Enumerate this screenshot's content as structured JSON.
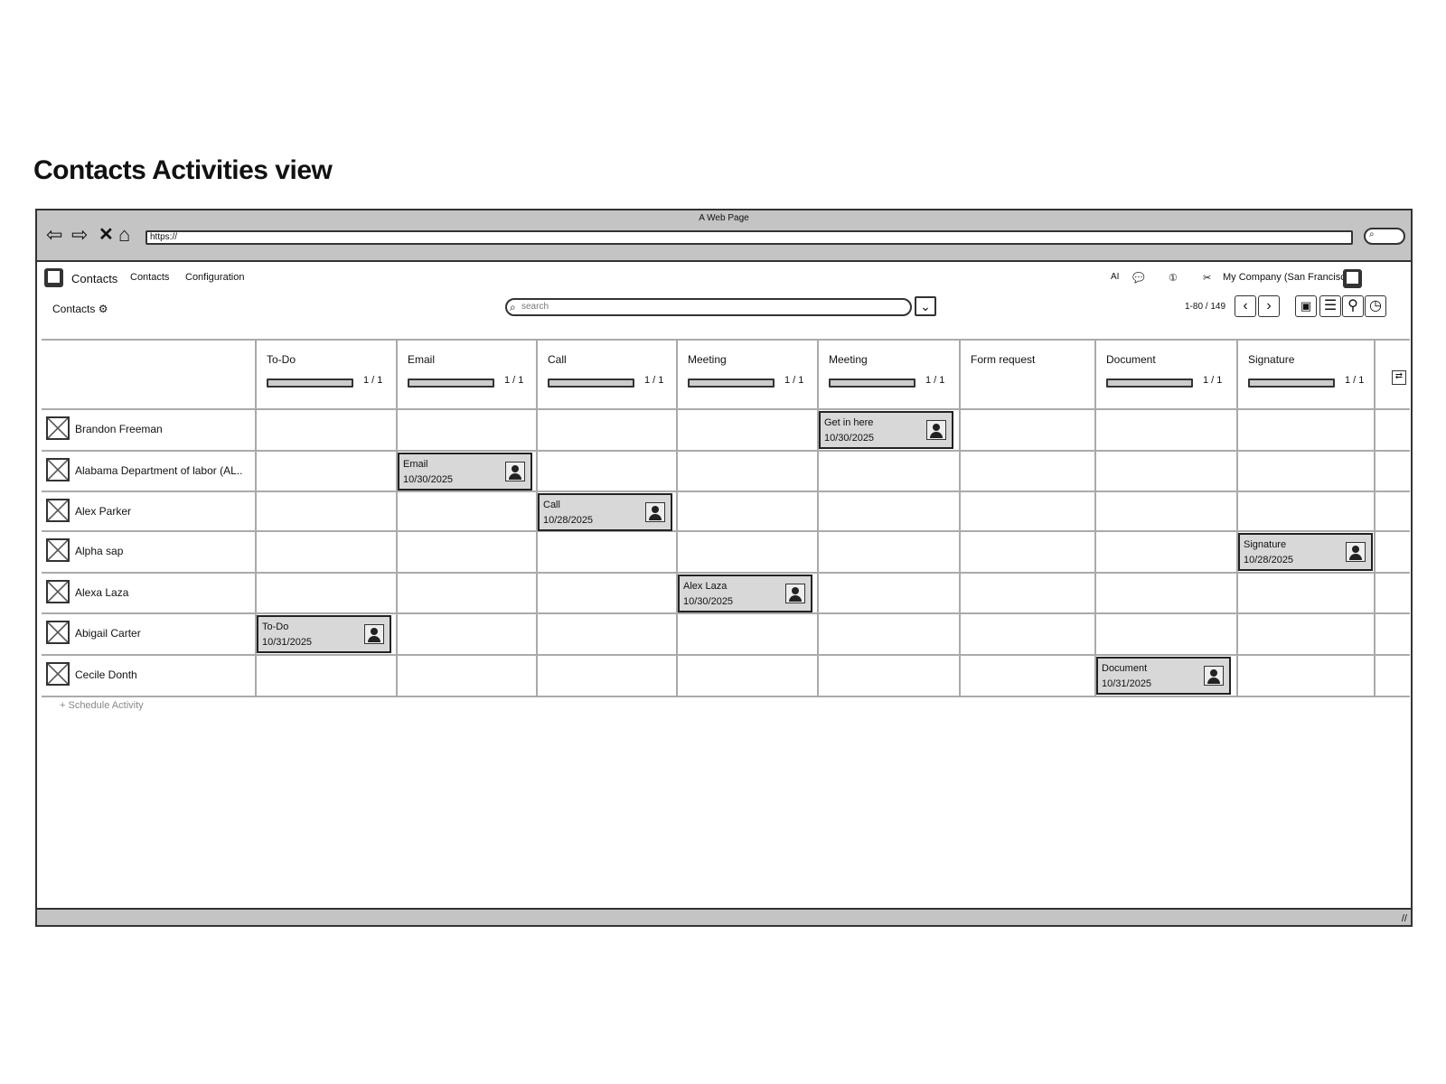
{
  "page_title": "Contacts Activities view",
  "browser": {
    "title": "A Web Page",
    "url": "https://"
  },
  "app_nav": {
    "app_name": "Contacts",
    "items": [
      "Contacts",
      "Configuration"
    ],
    "ai_label": "AI",
    "company": "My Company (San Francisco)"
  },
  "toolbar": {
    "breadcrumb": "Contacts",
    "search_placeholder": "search",
    "pager": "1-80 / 149"
  },
  "columns": [
    {
      "label": "To-Do",
      "count": "1 / 1",
      "progress": 1
    },
    {
      "label": "Email",
      "count": "1 / 1",
      "progress": 1
    },
    {
      "label": "Call",
      "count": "1 / 1",
      "progress": 1
    },
    {
      "label": "Meeting",
      "count": "1 / 1",
      "progress": 1
    },
    {
      "label": "Meeting",
      "count": "1 / 1",
      "progress": 1
    },
    {
      "label": "Form request",
      "count": "",
      "progress": null
    },
    {
      "label": "Document",
      "count": "1 / 1",
      "progress": 1
    },
    {
      "label": "Signature",
      "count": "1 / 1",
      "progress": 1
    }
  ],
  "rows": [
    {
      "name": "Brandon Freeman",
      "activity": {
        "column": 4,
        "title": "Get in here",
        "date": "10/30/2025"
      }
    },
    {
      "name": "Alabama Department of labor (AL..",
      "activity": {
        "column": 1,
        "title": "Email",
        "date": "10/30/2025"
      }
    },
    {
      "name": "Alex Parker",
      "activity": {
        "column": 2,
        "title": "Call",
        "date": "10/28/2025"
      }
    },
    {
      "name": "Alpha sap",
      "activity": {
        "column": 7,
        "title": "Signature",
        "date": "10/28/2025"
      }
    },
    {
      "name": "Alexa Laza",
      "activity": {
        "column": 3,
        "title": "Alex Laza",
        "date": "10/30/2025"
      }
    },
    {
      "name": "Abigail Carter",
      "activity": {
        "column": 0,
        "title": "To-Do",
        "date": "10/31/2025"
      }
    },
    {
      "name": "Cecile Donth",
      "activity": {
        "column": 6,
        "title": "Document",
        "date": "10/31/2025"
      }
    }
  ],
  "schedule_activity": "+ Schedule Activity"
}
